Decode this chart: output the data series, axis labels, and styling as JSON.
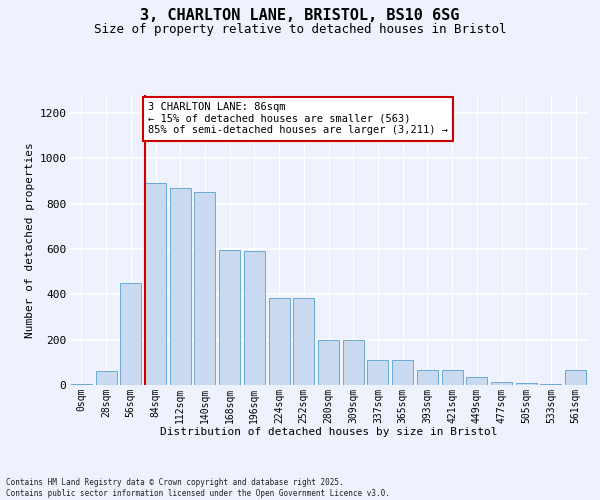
{
  "title_line1": "3, CHARLTON LANE, BRISTOL, BS10 6SG",
  "title_line2": "Size of property relative to detached houses in Bristol",
  "xlabel": "Distribution of detached houses by size in Bristol",
  "ylabel": "Number of detached properties",
  "footnote": "Contains HM Land Registry data © Crown copyright and database right 2025.\nContains public sector information licensed under the Open Government Licence v3.0.",
  "bar_labels": [
    "0sqm",
    "28sqm",
    "56sqm",
    "84sqm",
    "112sqm",
    "140sqm",
    "168sqm",
    "196sqm",
    "224sqm",
    "252sqm",
    "280sqm",
    "309sqm",
    "337sqm",
    "365sqm",
    "393sqm",
    "421sqm",
    "449sqm",
    "477sqm",
    "505sqm",
    "533sqm",
    "561sqm"
  ],
  "bar_values": [
    3,
    63,
    450,
    890,
    870,
    850,
    595,
    590,
    385,
    385,
    200,
    200,
    110,
    110,
    68,
    65,
    35,
    12,
    8,
    5,
    68
  ],
  "bar_color": "#c9daf0",
  "bar_edge_color": "#6aaad4",
  "marker_bar_index": 3,
  "marker_color": "#cc0000",
  "annotation_text": "3 CHARLTON LANE: 86sqm\n← 15% of detached houses are smaller (563)\n85% of semi-detached houses are larger (3,211) →",
  "annotation_box_facecolor": "#ffffff",
  "annotation_box_edgecolor": "#cc0000",
  "ylim_max": 1280,
  "yticks": [
    0,
    200,
    400,
    600,
    800,
    1000,
    1200
  ],
  "background_color": "#eef2fc",
  "grid_color": "#ffffff",
  "title1_fontsize": 11,
  "title2_fontsize": 9,
  "ylabel_fontsize": 8,
  "xlabel_fontsize": 8,
  "tick_fontsize": 7,
  "annot_fontsize": 7.5
}
